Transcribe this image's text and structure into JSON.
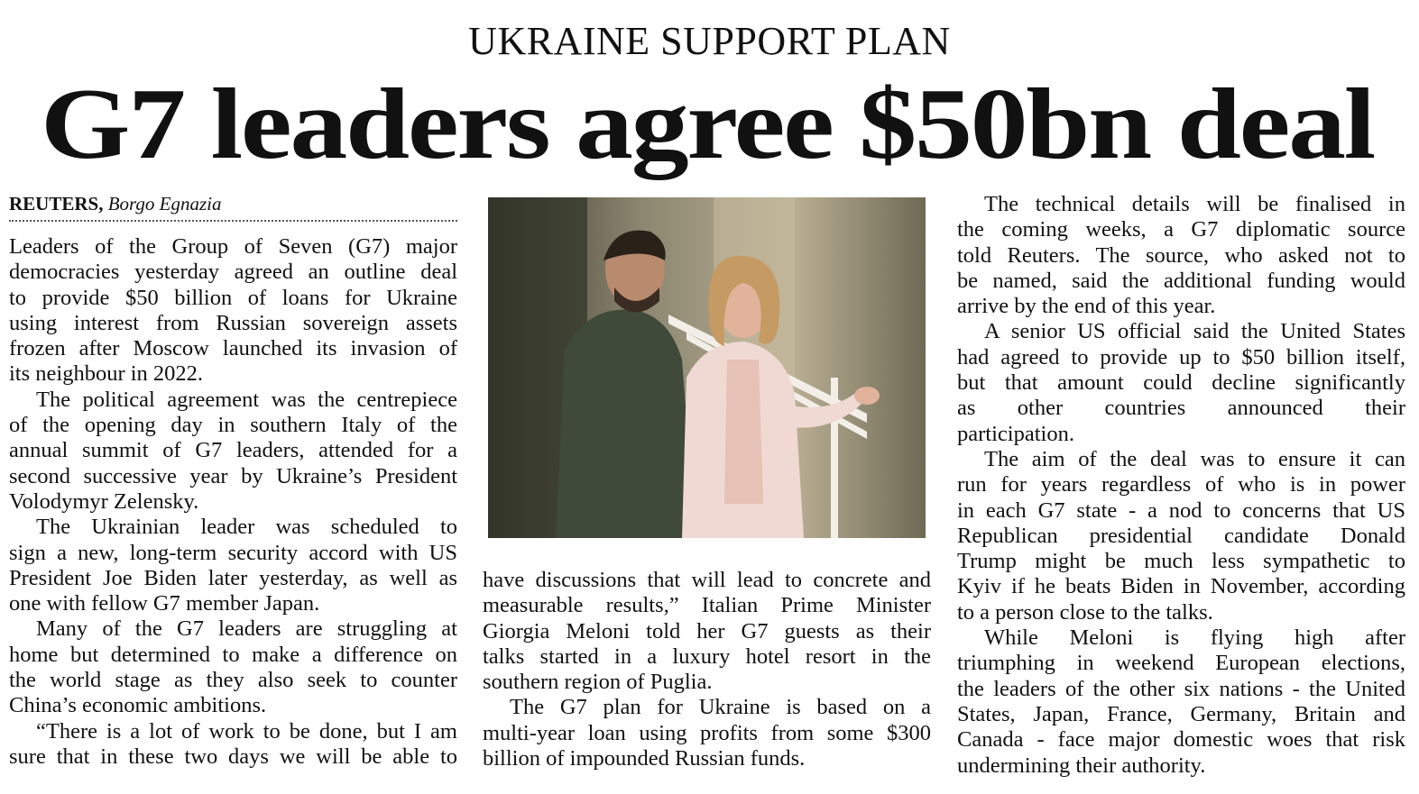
{
  "kicker": "UKRAINE SUPPORT PLAN",
  "headline": "G7 leaders agree $50bn deal",
  "byline": {
    "agency": "REUTERS,",
    "location": "Borgo Egnazia"
  },
  "photo": {
    "description_icon": "photo-zelensky-meloni"
  },
  "columns": [
    [
      {
        "indent": false,
        "lines": [
          "Leaders of the Group of Seven (G7) major",
          "democracies yesterday agreed an outline deal",
          "to provide $50 billion of loans for Ukraine",
          "using interest from Russian sovereign assets",
          "frozen after Moscow launched its invasion of",
          "its neighbour in 2022."
        ]
      },
      {
        "indent": true,
        "lines": [
          "The political agreement was the centrepiece",
          "of the opening day in southern Italy of the",
          "annual summit of G7 leaders, attended for a",
          "second successive year by Ukraine’s President",
          "Volodymyr Zelensky."
        ]
      },
      {
        "indent": true,
        "lines": [
          "The Ukrainian leader was scheduled to",
          "sign a new, long-term security accord with US",
          "President Joe Biden later yesterday, as well as",
          "one with fellow G7 member Japan."
        ]
      },
      {
        "indent": true,
        "lines": [
          "Many of the G7 leaders are struggling at",
          "home but determined to make a difference on",
          "the world stage as they also seek to counter",
          "China’s economic ambitions."
        ]
      },
      {
        "indent": true,
        "continues": true,
        "lines": [
          "“There is a lot of work to be done, but I am",
          "sure that in these two days we will be able to"
        ]
      }
    ],
    [
      {
        "indent": false,
        "lines": [
          "have discussions that will lead to concrete and",
          "measurable results,” Italian Prime Minister",
          "Giorgia Meloni told her G7 guests as their",
          "talks started in a luxury hotel resort in the",
          "southern region of Puglia."
        ]
      },
      {
        "indent": true,
        "lines": [
          "The G7 plan for Ukraine is based on a",
          "multi-year loan using profits from some $300",
          "billion of impounded Russian funds."
        ]
      }
    ],
    [
      {
        "indent": true,
        "lines": [
          "The technical details will be finalised in",
          "the coming weeks, a G7 diplomatic source",
          "told Reuters. The source, who asked not to",
          "be named, said the additional funding would",
          "arrive by the end of this year."
        ]
      },
      {
        "indent": true,
        "lines": [
          "A senior US official said the United States",
          "had agreed to provide up to $50 billion itself,",
          "but that amount could decline significantly",
          "as other countries announced their",
          "participation."
        ]
      },
      {
        "indent": true,
        "lines": [
          "The aim of the deal was to ensure it can",
          "run for years regardless of who is in power",
          "in each G7 state - a nod to concerns that US",
          "Republican presidential candidate Donald",
          "Trump might be much less sympathetic to",
          "Kyiv if he beats Biden in November, according",
          "to a person close to the talks."
        ]
      },
      {
        "indent": true,
        "lines": [
          "While Meloni is flying high after",
          "triumphing in weekend European elections,",
          "the leaders of the other six nations - the United",
          "States, Japan, France, Germany, Britain and",
          "Canada - face major domestic woes that risk",
          "undermining their authority."
        ]
      }
    ]
  ]
}
